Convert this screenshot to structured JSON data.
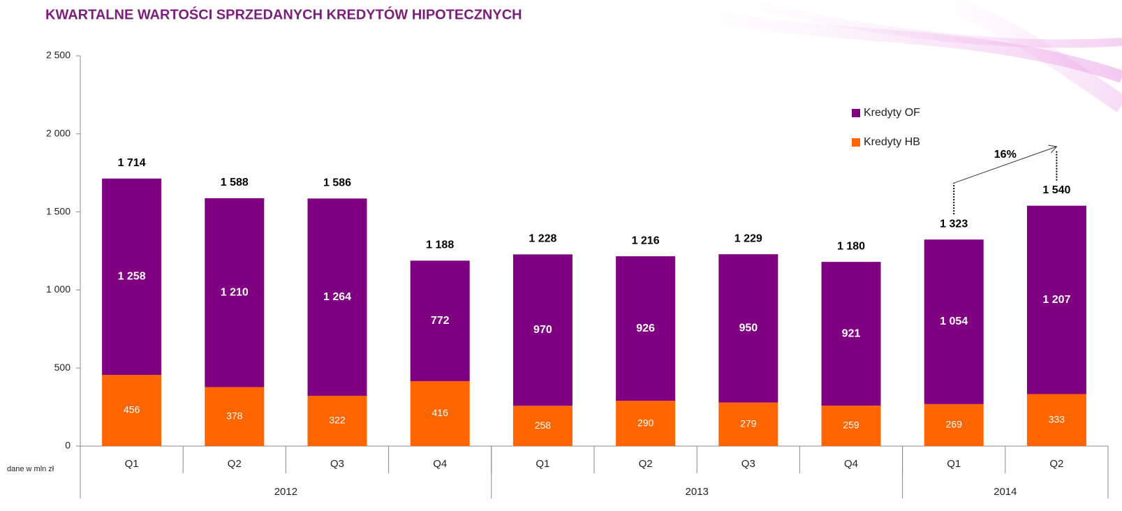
{
  "chart_data": {
    "type": "stacked-bar",
    "title": "KWARTALNE WARTOŚCI SPRZEDANYCH KREDYTÓW HIPOTECZNYCH",
    "note": "dane w mln zł",
    "categories": [
      "Q1",
      "Q2",
      "Q3",
      "Q4",
      "Q1",
      "Q2",
      "Q3",
      "Q4",
      "Q1",
      "Q2"
    ],
    "groups": [
      {
        "label": "2012",
        "span": 4
      },
      {
        "label": "2013",
        "span": 4
      },
      {
        "label": "2014",
        "span": 2
      }
    ],
    "series": [
      {
        "name": "Kredyty HB",
        "color": "#ff6600",
        "values": [
          456,
          378,
          322,
          416,
          258,
          290,
          279,
          259,
          269,
          333
        ]
      },
      {
        "name": "Kredyty OF",
        "color": "#7f0080",
        "values": [
          1258,
          1210,
          1264,
          772,
          970,
          926,
          950,
          921,
          1054,
          1207
        ],
        "value_labels": [
          "1 258",
          "1 210",
          "1 264",
          "772",
          "970",
          "926",
          "950",
          "921",
          "1 054",
          "1 207"
        ]
      }
    ],
    "totals": [
      1714,
      1588,
      1586,
      1188,
      1228,
      1216,
      1229,
      1180,
      1323,
      1540
    ],
    "total_labels": [
      "1 714",
      "1 588",
      "1 586",
      "1 188",
      "1 228",
      "1 216",
      "1 229",
      "1 180",
      "1 323",
      "1 540"
    ],
    "annotation": "16%",
    "ylim": [
      0,
      2500
    ],
    "yticks": [
      0,
      500,
      {
        "value": 1000,
        "label": "1 000"
      },
      {
        "value": 1500,
        "label": "1 500"
      },
      {
        "value": 2000,
        "label": "2 000"
      },
      {
        "value": 2500,
        "label": "2 500"
      }
    ],
    "legend": "right"
  }
}
